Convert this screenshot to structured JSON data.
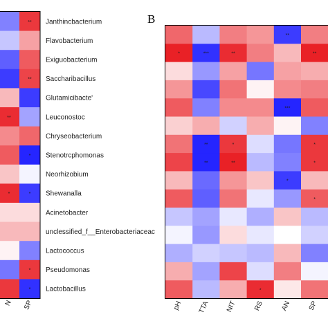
{
  "figure": {
    "panel_letter": "B"
  },
  "chart_data": [
    {
      "type": "heatmap",
      "title": "",
      "xlabel": "",
      "ylabel": "",
      "visible_columns": [
        "N",
        "SP"
      ],
      "rows": [
        "Janthincbacterium",
        "Flavobacterium",
        "Exiguobacterium",
        "Saccharibacillus",
        "Glutamicibacte'",
        "Leuconostoc",
        "Chryseobacterium",
        "Stenotrcphomonas",
        "Neorhizobium",
        "Shewanalla",
        "Acinetobacter",
        "unclessified_f__Enterobacteriaceac",
        "Lactococcus",
        "Pseudomonas",
        "Lactobacillus"
      ],
      "values": [
        [
          -0.55,
          0.85
        ],
        [
          -0.25,
          0.4
        ],
        [
          -0.7,
          0.7
        ],
        [
          -0.85,
          0.8
        ],
        [
          0.3,
          -0.85
        ],
        [
          0.9,
          -0.4
        ],
        [
          0.5,
          0.65
        ],
        [
          0.7,
          -0.95
        ],
        [
          0.25,
          -0.05
        ],
        [
          0.9,
          -0.85
        ],
        [
          0.15,
          0.15
        ],
        [
          0.3,
          0.3
        ],
        [
          0.05,
          -0.55
        ],
        [
          -0.6,
          0.85
        ],
        [
          0.85,
          -0.9
        ]
      ],
      "significance": [
        [
          "",
          "**"
        ],
        [
          "",
          ""
        ],
        [
          "",
          ""
        ],
        [
          "",
          "**"
        ],
        [
          "",
          ""
        ],
        [
          "**",
          ""
        ],
        [
          "",
          ""
        ],
        [
          "",
          "*"
        ],
        [
          "",
          ""
        ],
        [
          "*",
          "*"
        ],
        [
          "",
          ""
        ],
        [
          "",
          ""
        ],
        [
          "",
          ""
        ],
        [
          "",
          "*"
        ],
        [
          "",
          "*"
        ]
      ],
      "tick_labels": [
        "N",
        "SP"
      ],
      "color_scale": {
        "low": "#1a1aff",
        "mid": "#ffffff",
        "high": "#e8151b"
      }
    },
    {
      "type": "heatmap",
      "title": "",
      "xlabel": "",
      "ylabel": "",
      "columns": [
        "pH",
        "TTA",
        "NIT",
        "RS",
        "AN",
        "SP"
      ],
      "rows": [
        "Janthincbacterium",
        "Flavobacterium",
        "Exiguobacterium",
        "Saccharibacillus",
        "Glutamicibacte'",
        "Leuconostoc",
        "Chryseobacterium",
        "Stenotrcphomonas",
        "Neorhizobium",
        "Shewanalla",
        "Acinetobacter",
        "unclessified_f__Enterobacteriaceac",
        "Lactococcus",
        "Pseudomonas",
        "Lactobacillus"
      ],
      "values": [
        [
          0.65,
          -0.3,
          0.55,
          0.45,
          -0.85,
          0.55
        ],
        [
          0.95,
          -0.9,
          0.9,
          0.55,
          0.3,
          0.95
        ],
        [
          0.15,
          -0.45,
          0.4,
          -0.6,
          0.4,
          0.35
        ],
        [
          0.45,
          -0.8,
          0.6,
          0.05,
          0.5,
          0.55
        ],
        [
          0.7,
          -0.55,
          0.5,
          0.5,
          -0.95,
          0.7
        ],
        [
          0.2,
          0.35,
          -0.2,
          0.35,
          0.05,
          -0.55
        ],
        [
          0.6,
          -0.95,
          0.85,
          -0.15,
          -0.6,
          0.85
        ],
        [
          0.8,
          -0.95,
          0.95,
          -0.3,
          -0.55,
          0.85
        ],
        [
          0.3,
          -0.65,
          0.45,
          0.25,
          -0.85,
          0.3
        ],
        [
          0.7,
          -0.7,
          0.6,
          -0.1,
          -0.45,
          0.7
        ],
        [
          -0.25,
          -0.4,
          -0.1,
          -0.35,
          0.25,
          -0.3
        ],
        [
          -0.05,
          -0.45,
          0.15,
          -0.1,
          0.0,
          -0.2
        ],
        [
          -0.35,
          -0.2,
          -0.25,
          -0.3,
          0.3,
          -0.55
        ],
        [
          0.35,
          -0.4,
          0.8,
          -0.15,
          0.55,
          -0.05
        ],
        [
          0.7,
          -0.3,
          0.35,
          0.9,
          0.1,
          0.6
        ]
      ],
      "significance": [
        [
          "",
          "",
          "",
          "",
          "**",
          ""
        ],
        [
          "*",
          "***",
          "**",
          "",
          "",
          "**"
        ],
        [
          "",
          "",
          "",
          "",
          "",
          ""
        ],
        [
          "",
          "",
          "",
          "",
          "",
          ""
        ],
        [
          "",
          "",
          "",
          "",
          "***",
          ""
        ],
        [
          "",
          "",
          "",
          "",
          "",
          ""
        ],
        [
          "",
          "**",
          "*",
          "",
          "",
          "*"
        ],
        [
          "",
          "**",
          "**",
          "",
          "",
          "*"
        ],
        [
          "",
          "",
          "",
          "",
          "*",
          ""
        ],
        [
          "",
          "",
          "",
          "",
          "",
          "*"
        ],
        [
          "",
          "",
          "",
          "",
          "",
          ""
        ],
        [
          "",
          "",
          "",
          "",
          "",
          ""
        ],
        [
          "",
          "",
          "",
          "",
          "",
          ""
        ],
        [
          "",
          "",
          "",
          "",
          "",
          ""
        ],
        [
          "",
          "",
          "",
          "*",
          "",
          ""
        ]
      ],
      "tick_labels": [
        "pH",
        "TTA",
        "NIT",
        "RS",
        "AN",
        "SP"
      ],
      "color_scale": {
        "low": "#1a1aff",
        "mid": "#ffffff",
        "high": "#e8151b"
      }
    }
  ]
}
